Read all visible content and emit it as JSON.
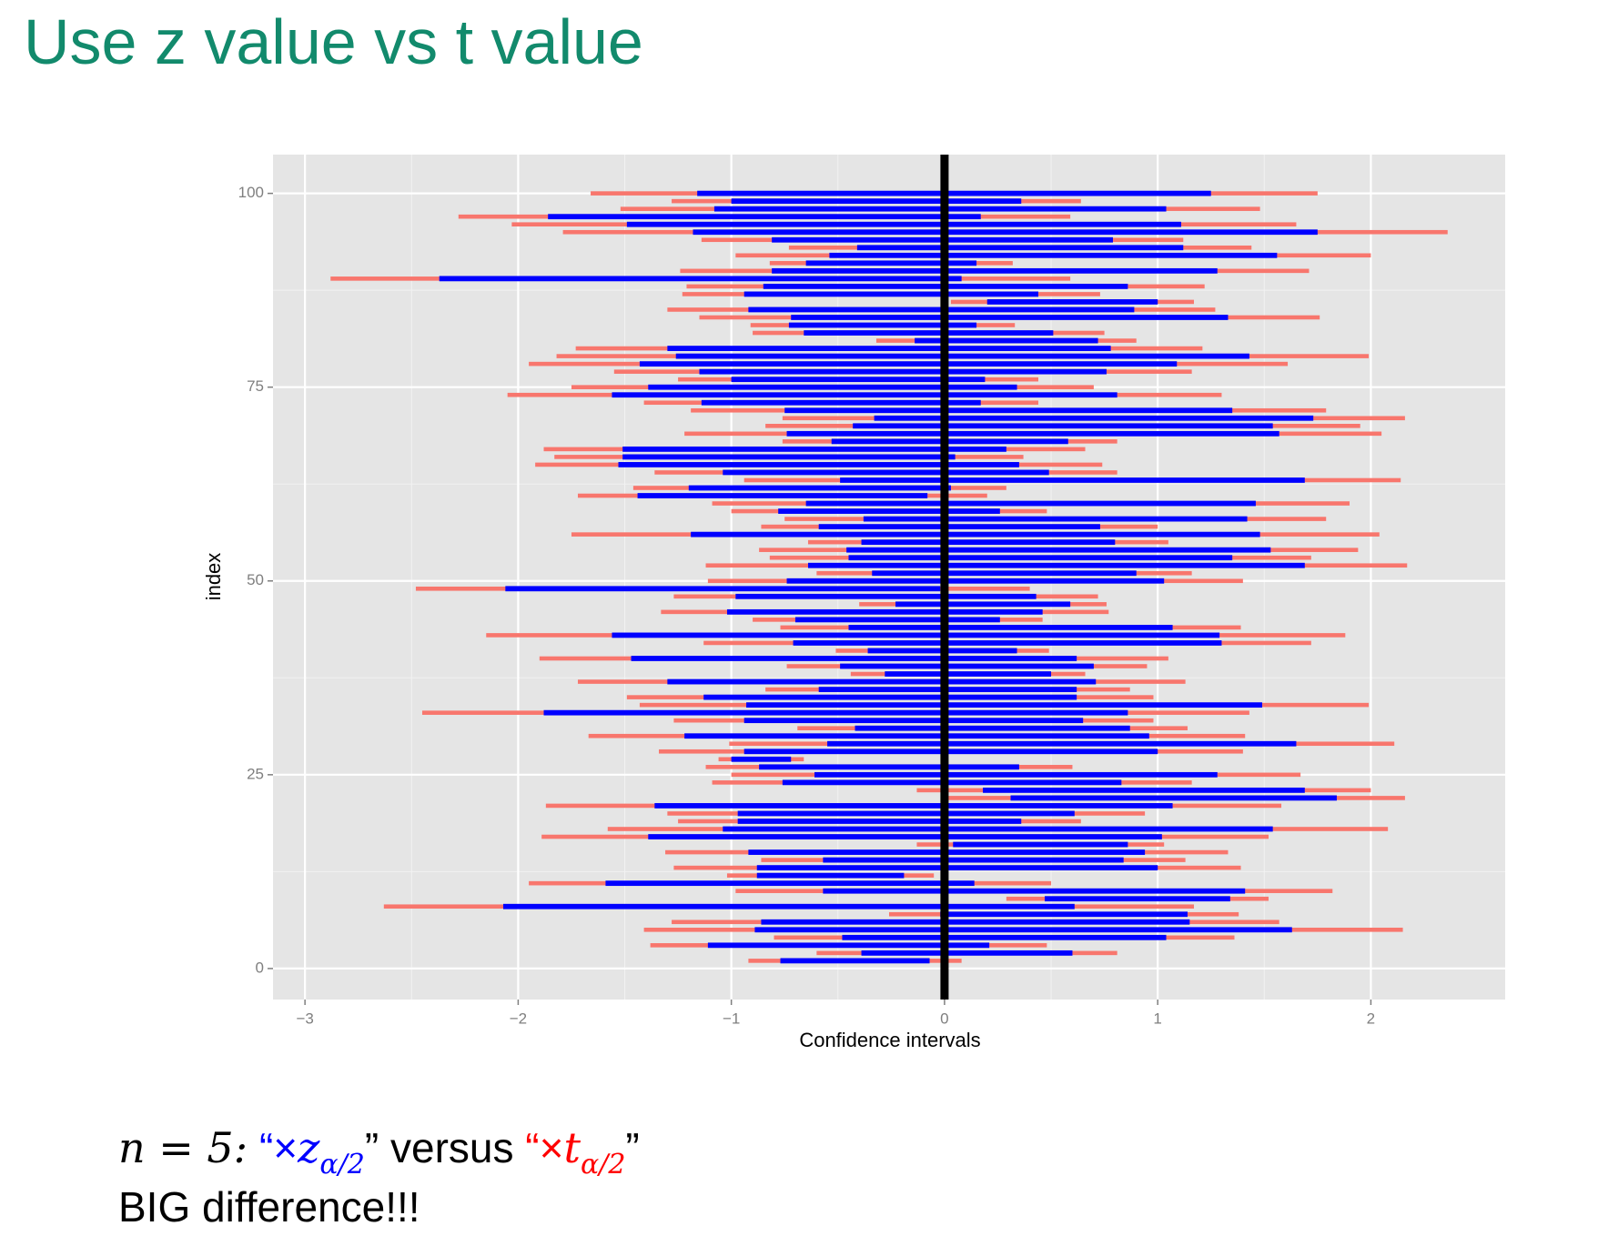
{
  "header": {
    "title": "Use z value vs t value"
  },
  "chart_data": {
    "type": "interval",
    "xlabel": "Confidence intervals",
    "ylabel": "index",
    "xlim": [
      -3.15,
      2.63
    ],
    "ylim": [
      -4,
      105
    ],
    "xticks": [
      {
        "value": -3,
        "label": "−3"
      },
      {
        "value": -2,
        "label": "−2"
      },
      {
        "value": -1,
        "label": "−1"
      },
      0,
      1,
      2
    ],
    "yticks": [
      0,
      25,
      50,
      75,
      100
    ],
    "grid": true,
    "reference_line": 0,
    "index": [
      100,
      99,
      98,
      97,
      96,
      95,
      94,
      93,
      92,
      91,
      90,
      89,
      88,
      87,
      86,
      85,
      84,
      83,
      82,
      81,
      80,
      79,
      78,
      77,
      76,
      75,
      74,
      73,
      72,
      71,
      70,
      69,
      68,
      67,
      66,
      65,
      64,
      63,
      62,
      61,
      60,
      59,
      58,
      57,
      56,
      55,
      54,
      53,
      52,
      51,
      50,
      49,
      48,
      47,
      46,
      45,
      44,
      43,
      42,
      41,
      40,
      39,
      38,
      37,
      36,
      35,
      34,
      33,
      32,
      31,
      30,
      29,
      28,
      27,
      26,
      25,
      24,
      23,
      22,
      21,
      20,
      19,
      18,
      17,
      16,
      15,
      14,
      13,
      12,
      11,
      10,
      9,
      8,
      7,
      6,
      5,
      4,
      3,
      2,
      1
    ],
    "series": [
      {
        "color": "#f8766d",
        "low": [
          -1.66,
          -1.28,
          -1.52,
          -2.28,
          -2.03,
          -1.79,
          -1.14,
          -0.73,
          -0.98,
          -0.82,
          -1.24,
          -2.88,
          -1.21,
          -1.23,
          0.03,
          -1.3,
          -1.15,
          -0.91,
          -0.9,
          -0.32,
          -1.73,
          -1.82,
          -1.95,
          -1.55,
          -1.25,
          -1.75,
          -2.05,
          -1.41,
          -1.19,
          -0.76,
          -0.84,
          -1.22,
          -0.76,
          -1.88,
          -1.83,
          -1.92,
          -1.36,
          -0.94,
          -1.46,
          -1.72,
          -1.09,
          -1.0,
          -0.75,
          -0.86,
          -1.75,
          -0.64,
          -0.87,
          -0.82,
          -1.12,
          -0.6,
          -1.11,
          -2.48,
          -1.27,
          -0.4,
          -1.33,
          -0.9,
          -0.77,
          -2.15,
          -1.13,
          -0.51,
          -1.9,
          -0.74,
          -0.44,
          -1.72,
          -0.84,
          -1.49,
          -1.43,
          -2.45,
          -1.27,
          -0.69,
          -1.67,
          -1.01,
          -1.34,
          -1.06,
          -1.12,
          -1.0,
          -1.09,
          -0.13,
          -0.01,
          -1.87,
          -1.3,
          -1.25,
          -1.58,
          -1.89,
          -0.13,
          -1.31,
          -0.86,
          -1.27,
          -1.02,
          -1.95,
          -0.98,
          0.29,
          -2.63,
          -0.26,
          -1.28,
          -1.41,
          -0.8,
          -1.38,
          -0.6,
          -0.92
        ],
        "high": [
          1.75,
          0.64,
          1.48,
          0.59,
          1.65,
          2.36,
          1.12,
          1.44,
          2.0,
          0.32,
          1.71,
          0.59,
          1.22,
          0.73,
          1.17,
          1.27,
          1.76,
          0.33,
          0.75,
          0.9,
          1.21,
          1.99,
          1.61,
          1.16,
          0.44,
          0.7,
          1.3,
          0.44,
          1.79,
          2.16,
          1.95,
          2.05,
          0.81,
          0.66,
          0.37,
          0.74,
          0.81,
          2.14,
          0.29,
          0.2,
          1.9,
          0.48,
          1.79,
          1.0,
          2.04,
          1.05,
          1.94,
          1.72,
          2.17,
          1.16,
          1.4,
          0.4,
          0.72,
          0.76,
          0.77,
          0.46,
          1.39,
          1.88,
          1.72,
          0.49,
          1.05,
          0.95,
          0.66,
          1.13,
          0.87,
          0.98,
          1.99,
          1.43,
          0.98,
          1.14,
          1.41,
          2.11,
          1.4,
          -0.66,
          0.6,
          1.67,
          1.16,
          2.0,
          2.16,
          1.58,
          0.94,
          0.64,
          2.08,
          1.52,
          1.03,
          1.33,
          1.13,
          1.39,
          -0.05,
          0.5,
          1.82,
          1.52,
          1.17,
          1.38,
          1.57,
          2.15,
          1.36,
          0.48,
          0.81,
          0.08
        ]
      },
      {
        "color": "#0000ff",
        "low": [
          -1.16,
          -1.0,
          -1.08,
          -1.86,
          -1.49,
          -1.18,
          -0.81,
          -0.41,
          -0.54,
          -0.65,
          -0.81,
          -2.37,
          -0.85,
          -0.94,
          0.2,
          -0.92,
          -0.72,
          -0.73,
          -0.66,
          -0.14,
          -1.3,
          -1.26,
          -1.43,
          -1.15,
          -1.0,
          -1.39,
          -1.56,
          -1.14,
          -0.75,
          -0.33,
          -0.43,
          -0.74,
          -0.53,
          -1.51,
          -1.51,
          -1.53,
          -1.04,
          -0.49,
          -1.2,
          -1.44,
          -0.65,
          -0.78,
          -0.38,
          -0.59,
          -1.19,
          -0.39,
          -0.46,
          -0.45,
          -0.64,
          -0.34,
          -0.74,
          -2.06,
          -0.98,
          -0.23,
          -1.02,
          -0.7,
          -0.45,
          -1.56,
          -0.71,
          -0.36,
          -1.47,
          -0.49,
          -0.28,
          -1.3,
          -0.59,
          -1.13,
          -0.93,
          -1.88,
          -0.94,
          -0.42,
          -1.22,
          -0.55,
          -0.94,
          -1.0,
          -0.87,
          -0.61,
          -0.76,
          0.18,
          0.31,
          -1.36,
          -0.97,
          -0.97,
          -1.04,
          -1.39,
          0.04,
          -0.92,
          -0.57,
          -0.88,
          -0.88,
          -1.59,
          -0.57,
          0.47,
          -2.07,
          -0.02,
          -0.86,
          -0.89,
          -0.48,
          -1.11,
          -0.39,
          -0.77
        ],
        "high": [
          1.25,
          0.36,
          1.04,
          0.17,
          1.11,
          1.75,
          0.79,
          1.12,
          1.56,
          0.15,
          1.28,
          0.08,
          0.86,
          0.44,
          1.0,
          0.89,
          1.33,
          0.15,
          0.51,
          0.72,
          0.78,
          1.43,
          1.09,
          0.76,
          0.19,
          0.34,
          0.81,
          0.17,
          1.35,
          1.73,
          1.54,
          1.57,
          0.58,
          0.29,
          0.05,
          0.35,
          0.49,
          1.69,
          0.03,
          -0.08,
          1.46,
          0.26,
          1.42,
          0.73,
          1.48,
          0.8,
          1.53,
          1.35,
          1.69,
          0.9,
          1.03,
          -0.02,
          0.43,
          0.59,
          0.46,
          0.26,
          1.07,
          1.29,
          1.3,
          0.34,
          0.62,
          0.7,
          0.5,
          0.71,
          0.62,
          0.62,
          1.49,
          0.86,
          0.65,
          0.87,
          0.96,
          1.65,
          1.0,
          -0.72,
          0.35,
          1.28,
          0.83,
          1.69,
          1.84,
          1.07,
          0.61,
          0.36,
          1.54,
          1.02,
          0.86,
          0.94,
          0.84,
          1.0,
          -0.19,
          0.14,
          1.41,
          1.34,
          0.61,
          1.14,
          1.15,
          1.63,
          1.04,
          0.21,
          0.6,
          -0.07
        ]
      }
    ]
  },
  "caption": {
    "math_lhs": "n = 5:",
    "open_quote": "“",
    "close_quote": "”",
    "times": "×",
    "z_symbol": "z",
    "t_symbol": "t",
    "subscript": "α/2",
    "versus": "versus",
    "line2": "BIG difference!!!"
  }
}
